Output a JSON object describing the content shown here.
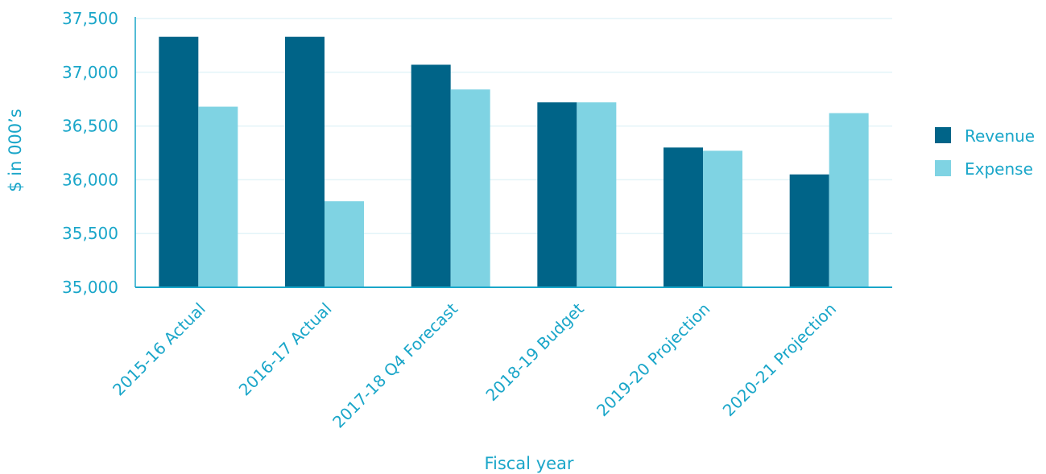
{
  "chart_data": {
    "type": "bar",
    "categories": [
      "2015-16 Actual",
      "2016-17 Actual",
      "2017-18 Q4 Forecast",
      "2018-19 Budget",
      "2019-20 Projection",
      "2020-21 Projection"
    ],
    "series": [
      {
        "name": "Revenue",
        "color": "#006488",
        "values": [
          37330,
          37330,
          37070,
          36720,
          36300,
          36050
        ]
      },
      {
        "name": "Expense",
        "color": "#7fd3e3",
        "values": [
          36680,
          35800,
          36840,
          36720,
          36270,
          36620
        ]
      }
    ],
    "xlabel": "Fiscal year",
    "ylabel": "$ in 000’s",
    "ylim": [
      35000,
      37500
    ],
    "yticks": [
      35000,
      35500,
      36000,
      36500,
      37000,
      37500
    ],
    "ytick_labels": [
      "35,000",
      "35,500",
      "36,000",
      "36,500",
      "37,000",
      "37,500"
    ],
    "grid": true,
    "legend_position": "right",
    "colors": {
      "text": "#1aa6c9",
      "axis": "#1aa6c9",
      "grid": "#e3f4f8"
    }
  }
}
